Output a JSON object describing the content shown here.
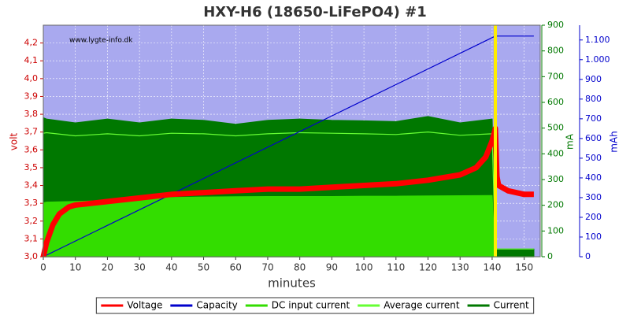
{
  "chart_data": {
    "type": "line",
    "title": "HXY-H6 (18650-LiFePO4) #1",
    "annotation": "www.lygte-info.dk",
    "xlabel": "minutes",
    "ylabel": "volt",
    "y2label": "mA",
    "y3label": "mAh",
    "plot_background": "#a9a9ef",
    "marker_x": 141,
    "marker_color": "#ffee00",
    "xlim": [
      0,
      155
    ],
    "xticks": [
      0,
      10,
      20,
      30,
      40,
      50,
      60,
      70,
      80,
      90,
      100,
      110,
      120,
      130,
      140,
      150
    ],
    "ylim": [
      3.0,
      4.3
    ],
    "yticks": [
      {
        "value": 3.0,
        "label": "3,0"
      },
      {
        "value": 3.1,
        "label": "3,1"
      },
      {
        "value": 3.2,
        "label": "3,2"
      },
      {
        "value": 3.3,
        "label": "3,3"
      },
      {
        "value": 3.4,
        "label": "3,4"
      },
      {
        "value": 3.5,
        "label": "3,5"
      },
      {
        "value": 3.6,
        "label": "3,6"
      },
      {
        "value": 3.7,
        "label": "3,7"
      },
      {
        "value": 3.8,
        "label": "3,8"
      },
      {
        "value": 3.9,
        "label": "3,9"
      },
      {
        "value": 4.0,
        "label": "4,0"
      },
      {
        "value": 4.1,
        "label": "4,1"
      },
      {
        "value": 4.2,
        "label": "4,2"
      }
    ],
    "y2lim": [
      0,
      900
    ],
    "y2ticks": [
      0,
      100,
      200,
      300,
      400,
      500,
      600,
      700,
      800,
      900
    ],
    "y3lim": [
      0,
      1175
    ],
    "y3ticks": [
      0,
      100,
      200,
      300,
      400,
      500,
      600,
      700,
      800,
      900,
      {
        "value": 1000,
        "label": "1.000"
      },
      {
        "value": 1100,
        "label": "1.100"
      }
    ],
    "grid": true,
    "series": [
      {
        "name": "Voltage",
        "color": "#ff0000",
        "axis": "y",
        "style": "thick",
        "x": [
          0,
          1,
          3,
          5,
          8,
          10,
          15,
          20,
          30,
          40,
          50,
          60,
          70,
          80,
          90,
          100,
          110,
          120,
          130,
          135,
          138,
          140,
          141,
          141.5,
          142,
          145,
          150,
          153
        ],
        "values": [
          3.0,
          3.08,
          3.18,
          3.24,
          3.28,
          3.29,
          3.3,
          3.31,
          3.33,
          3.35,
          3.36,
          3.37,
          3.38,
          3.38,
          3.39,
          3.4,
          3.41,
          3.43,
          3.46,
          3.5,
          3.56,
          3.65,
          3.72,
          3.45,
          3.4,
          3.37,
          3.35,
          3.35
        ]
      },
      {
        "name": "Capacity",
        "color": "#0000cc",
        "axis": "y3",
        "style": "line",
        "x": [
          0,
          141,
          153
        ],
        "values": [
          0,
          1120,
          1120
        ]
      },
      {
        "name": "DC input current",
        "color": "#33dd00",
        "axis": "y2",
        "style": "area",
        "x": [
          0,
          1,
          10,
          20,
          30,
          40,
          50,
          60,
          70,
          80,
          90,
          100,
          110,
          120,
          130,
          140,
          141,
          142,
          153
        ],
        "values": [
          209,
          212,
          215,
          218,
          225,
          230,
          232,
          233,
          234,
          234,
          234,
          235,
          235,
          236,
          237,
          238,
          0,
          0,
          0
        ]
      },
      {
        "name": "Average current",
        "color": "#66ff33",
        "axis": "y2",
        "style": "line",
        "x": [
          0,
          1,
          10,
          20,
          30,
          40,
          50,
          60,
          70,
          80,
          90,
          100,
          110,
          120,
          130,
          140,
          141,
          142,
          153
        ],
        "values": [
          480,
          482,
          470,
          478,
          470,
          480,
          478,
          470,
          478,
          482,
          480,
          478,
          475,
          485,
          472,
          478,
          30,
          30,
          30
        ]
      },
      {
        "name": "Current",
        "color": "#007800",
        "axis": "y2",
        "style": "area",
        "x": [
          0,
          1,
          10,
          20,
          30,
          40,
          50,
          60,
          70,
          80,
          90,
          100,
          110,
          120,
          130,
          140,
          141,
          142,
          153
        ],
        "values": [
          540,
          535,
          520,
          535,
          520,
          535,
          530,
          515,
          530,
          535,
          530,
          528,
          525,
          545,
          520,
          535,
          30,
          30,
          30
        ]
      }
    ]
  }
}
